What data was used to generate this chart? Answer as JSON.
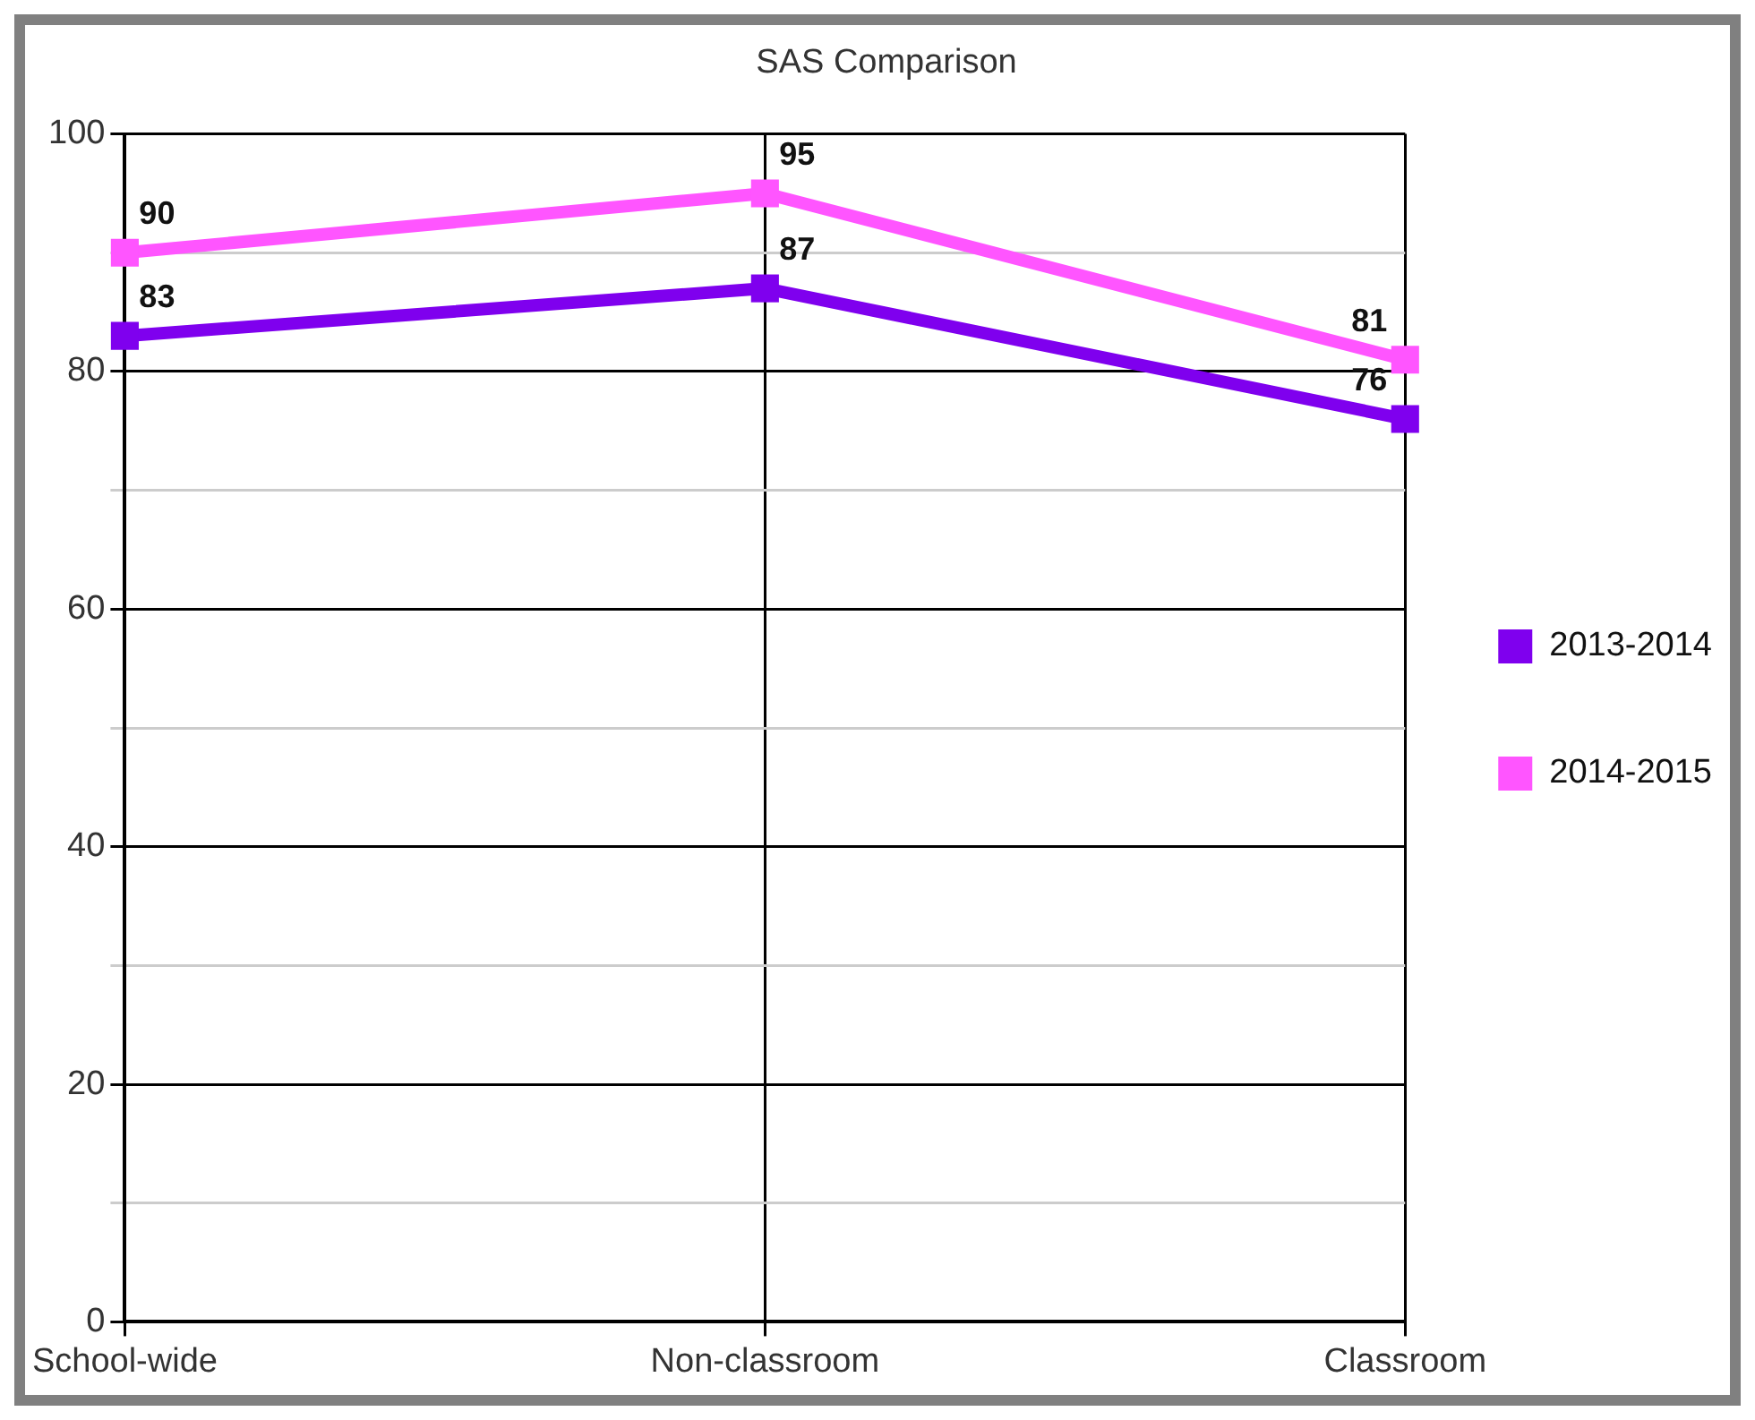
{
  "chart_data": {
    "type": "line",
    "title": "SAS Comparison",
    "categories": [
      "School-wide",
      "Non-classroom",
      "Classroom"
    ],
    "series": [
      {
        "name": "2013-2014",
        "color": "#7f00ee",
        "values": [
          83,
          87,
          76
        ]
      },
      {
        "name": "2014-2015",
        "color": "#ff55ff",
        "values": [
          90,
          95,
          81
        ]
      }
    ],
    "ylim": [
      0,
      100
    ],
    "yticks": [
      0,
      {
        "value": 10,
        "label": null
      },
      20,
      {
        "value": 30,
        "label": null
      },
      40,
      {
        "value": 50,
        "label": null
      },
      60,
      {
        "value": 70,
        "label": null
      },
      80,
      {
        "value": 90,
        "label": null
      },
      100
    ],
    "grid": true,
    "legend": "right",
    "marker": "square",
    "line_style": "solid",
    "data_labels": true
  }
}
